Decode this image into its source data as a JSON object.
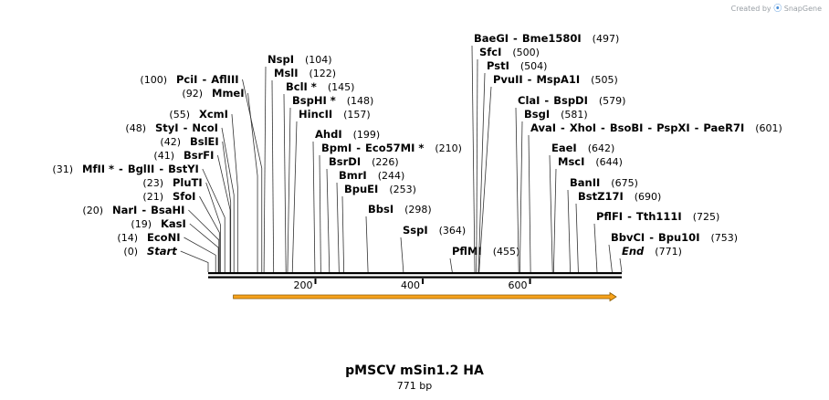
{
  "credit": {
    "prefix": "Created by",
    "brand": "SnapGene"
  },
  "plasmid": {
    "name": "pMSCV mSin1.2 HA",
    "length_label": "771 bp",
    "length": 771
  },
  "axis": {
    "ticks": [
      200,
      400,
      600
    ]
  },
  "feature": {
    "name": "arrow",
    "start": 1,
    "end": 771,
    "direction": "forward",
    "color": "#f7a21b"
  },
  "colors": {
    "line": "#000000",
    "feature_fill": "#f7a21b",
    "feature_outline": "#8a5a00"
  },
  "sites": [
    {
      "side": "left",
      "enzymes": [
        "Start"
      ],
      "pos": 0,
      "pos_label": "(0)",
      "italic": true
    },
    {
      "side": "left",
      "enzymes": [
        "EcoNI"
      ],
      "pos": 14,
      "pos_label": "(14)"
    },
    {
      "side": "left",
      "enzymes": [
        "KasI"
      ],
      "pos": 19,
      "pos_label": "(19)"
    },
    {
      "side": "left",
      "enzymes": [
        "NarI",
        "BsaHI"
      ],
      "pos": 20,
      "pos_label": "(20)"
    },
    {
      "side": "left",
      "enzymes": [
        "SfoI"
      ],
      "pos": 21,
      "pos_label": "(21)"
    },
    {
      "side": "left",
      "enzymes": [
        "PluTI"
      ],
      "pos": 23,
      "pos_label": "(23)"
    },
    {
      "side": "left",
      "enzymes": [
        "MfII *",
        "BglII",
        "BstYI"
      ],
      "pos": 31,
      "pos_label": "(31)"
    },
    {
      "side": "left",
      "enzymes": [
        "BsrFI"
      ],
      "pos": 41,
      "pos_label": "(41)"
    },
    {
      "side": "left",
      "enzymes": [
        "BslEI"
      ],
      "pos": 42,
      "pos_label": "(42)"
    },
    {
      "side": "left",
      "enzymes": [
        "StyI",
        "NcoI"
      ],
      "pos": 48,
      "pos_label": "(48)"
    },
    {
      "side": "left",
      "enzymes": [
        "XcmI"
      ],
      "pos": 55,
      "pos_label": "(55)"
    },
    {
      "side": "left",
      "enzymes": [
        "MmeI"
      ],
      "pos": 92,
      "pos_label": "(92)"
    },
    {
      "side": "left",
      "enzymes": [
        "PciI",
        "AflIII"
      ],
      "pos": 100,
      "pos_label": "(100)"
    },
    {
      "side": "right",
      "enzymes": [
        "NspI"
      ],
      "pos": 104,
      "pos_label": "(104)"
    },
    {
      "side": "right",
      "enzymes": [
        "MslI"
      ],
      "pos": 122,
      "pos_label": "(122)"
    },
    {
      "side": "right",
      "enzymes": [
        "BclI *"
      ],
      "pos": 145,
      "pos_label": "(145)"
    },
    {
      "side": "right",
      "enzymes": [
        "BspHI *"
      ],
      "pos": 148,
      "pos_label": "(148)"
    },
    {
      "side": "right",
      "enzymes": [
        "HincII"
      ],
      "pos": 157,
      "pos_label": "(157)"
    },
    {
      "side": "right",
      "enzymes": [
        "AhdI"
      ],
      "pos": 199,
      "pos_label": "(199)"
    },
    {
      "side": "right",
      "enzymes": [
        "BpmI",
        "Eco57MI *"
      ],
      "pos": 210,
      "pos_label": "(210)"
    },
    {
      "side": "right",
      "enzymes": [
        "BsrDI"
      ],
      "pos": 226,
      "pos_label": "(226)"
    },
    {
      "side": "right",
      "enzymes": [
        "BmrI"
      ],
      "pos": 244,
      "pos_label": "(244)"
    },
    {
      "side": "right",
      "enzymes": [
        "BpuEI"
      ],
      "pos": 253,
      "pos_label": "(253)"
    },
    {
      "side": "right",
      "enzymes": [
        "BbsI"
      ],
      "pos": 298,
      "pos_label": "(298)"
    },
    {
      "side": "right",
      "enzymes": [
        "SspI"
      ],
      "pos": 364,
      "pos_label": "(364)"
    },
    {
      "side": "right",
      "enzymes": [
        "PflMI"
      ],
      "pos": 455,
      "pos_label": "(455)"
    },
    {
      "side": "right",
      "enzymes": [
        "BaeGI",
        "Bme1580I"
      ],
      "pos": 497,
      "pos_label": "(497)"
    },
    {
      "side": "right",
      "enzymes": [
        "SfcI"
      ],
      "pos": 500,
      "pos_label": "(500)"
    },
    {
      "side": "right",
      "enzymes": [
        "PstI"
      ],
      "pos": 504,
      "pos_label": "(504)"
    },
    {
      "side": "right",
      "enzymes": [
        "PvuII",
        "MspA1I"
      ],
      "pos": 505,
      "pos_label": "(505)"
    },
    {
      "side": "right",
      "enzymes": [
        "ClaI",
        "BspDI"
      ],
      "pos": 579,
      "pos_label": "(579)"
    },
    {
      "side": "right",
      "enzymes": [
        "BsgI"
      ],
      "pos": 581,
      "pos_label": "(581)"
    },
    {
      "side": "right",
      "enzymes": [
        "AvaI",
        "XhoI",
        "BsoBI",
        "PspXI",
        "PaeR7I"
      ],
      "pos": 601,
      "pos_label": "(601)"
    },
    {
      "side": "right",
      "enzymes": [
        "EaeI"
      ],
      "pos": 642,
      "pos_label": "(642)"
    },
    {
      "side": "right",
      "enzymes": [
        "MscI"
      ],
      "pos": 644,
      "pos_label": "(644)"
    },
    {
      "side": "right",
      "enzymes": [
        "BanII"
      ],
      "pos": 675,
      "pos_label": "(675)"
    },
    {
      "side": "right",
      "enzymes": [
        "BstZ17I"
      ],
      "pos": 690,
      "pos_label": "(690)"
    },
    {
      "side": "right",
      "enzymes": [
        "PflFI",
        "Tth111I"
      ],
      "pos": 725,
      "pos_label": "(725)"
    },
    {
      "side": "right",
      "enzymes": [
        "BbvCI",
        "Bpu10I"
      ],
      "pos": 753,
      "pos_label": "(753)"
    },
    {
      "side": "right",
      "enzymes": [
        "End"
      ],
      "pos": 771,
      "pos_label": "(771)",
      "italic": true
    }
  ]
}
